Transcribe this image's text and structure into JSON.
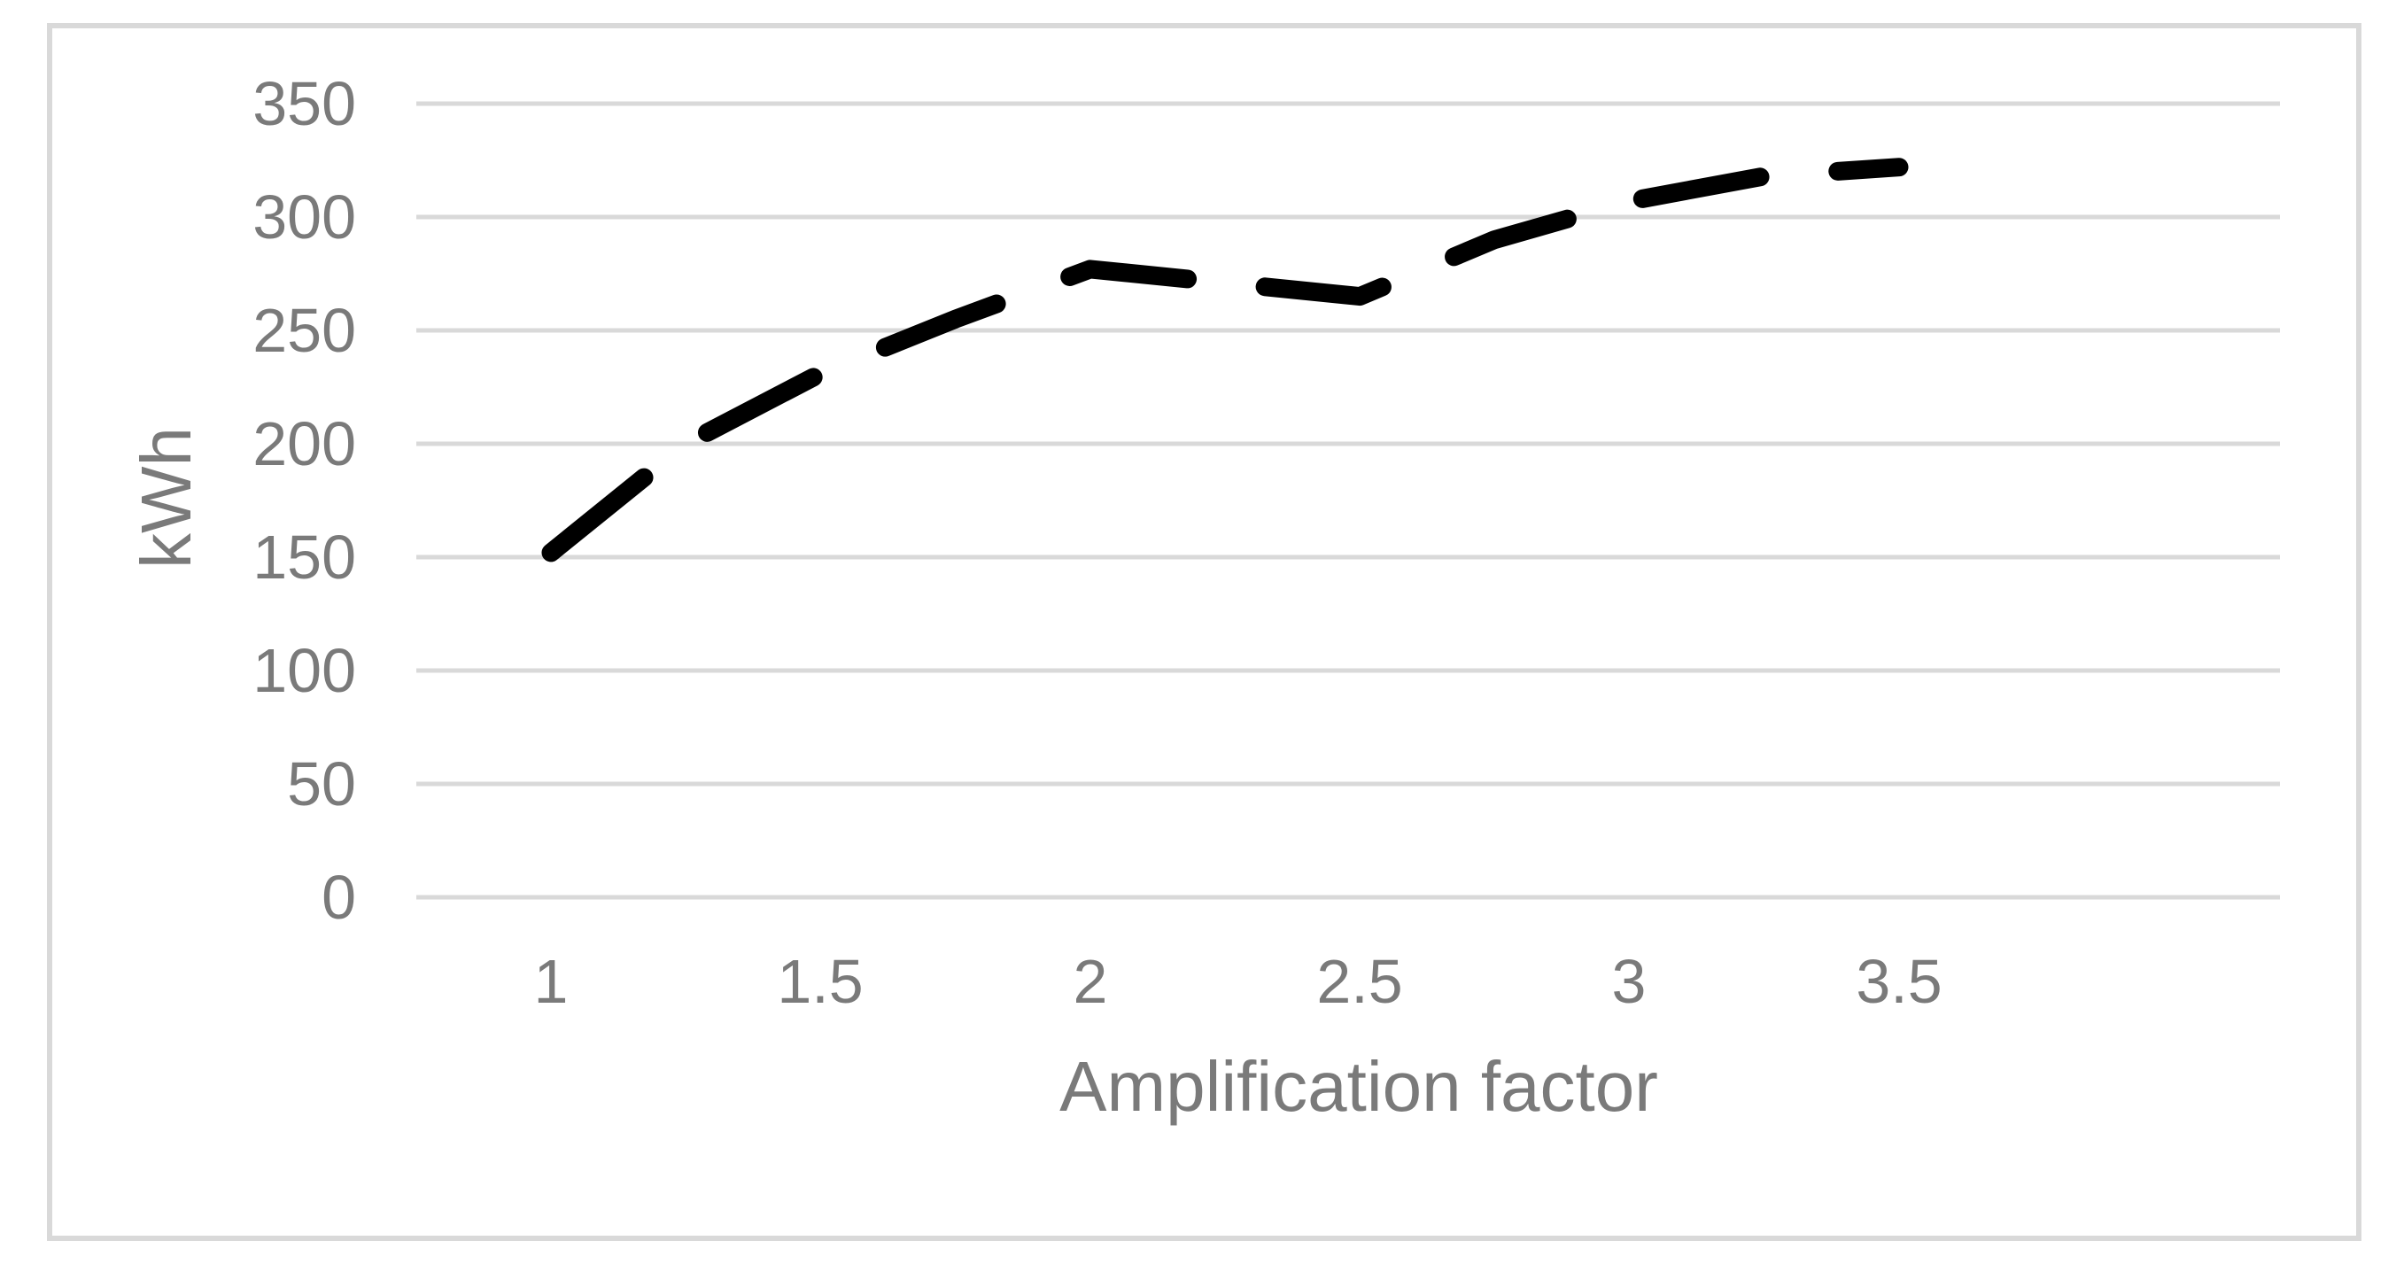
{
  "chart_data": {
    "type": "line",
    "title": "",
    "xlabel": "Amplification factor",
    "ylabel": "kWh",
    "series": [
      {
        "x": [
          1,
          1.25,
          1.5,
          1.75,
          2,
          2.25,
          2.5,
          2.75,
          3,
          3.25,
          3.5
        ],
        "values": [
          152,
          200,
          231,
          255,
          277,
          271,
          265,
          290,
          307,
          318,
          322
        ]
      }
    ],
    "xtick_labels": [
      "1",
      "1.5",
      "2",
      "2.5",
      "3",
      "3.5"
    ],
    "xtick_values": [
      1,
      1.5,
      2,
      2.5,
      3,
      3.5
    ],
    "ytick_labels_desc": [
      "350",
      "300",
      "250",
      "200",
      "150",
      "100",
      "50",
      "0"
    ],
    "ytick_values": [
      0,
      50,
      100,
      150,
      200,
      250,
      300,
      350
    ],
    "ylim": [
      0,
      350
    ],
    "x_axis_range": [
      0.75,
      4.25
    ],
    "grid": "horizontal-only",
    "legend": "none",
    "line_style": "dashed",
    "colors": {
      "series_line": "#000000",
      "gridline": "#d9d9d9",
      "chart_border": "#d9d9d9",
      "axis_text": "#7a7a7a",
      "background": "#ffffff"
    }
  }
}
